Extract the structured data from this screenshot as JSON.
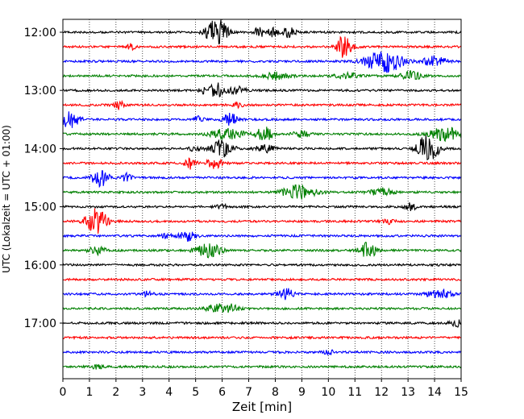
{
  "chart_data": {
    "type": "line",
    "subtype": "helicorder-seismogram",
    "xlabel": "Zeit  [min]",
    "ylabel": "UTC (Lokalzeit = UTC + 01:00)",
    "xlim": [
      0,
      15
    ],
    "x_ticks": [
      "0",
      "1",
      "2",
      "3",
      "4",
      "5",
      "6",
      "7",
      "8",
      "9",
      "10",
      "11",
      "12",
      "13",
      "14",
      "15"
    ],
    "y_tick_labels": [
      "12:00",
      "13:00",
      "14:00",
      "15:00",
      "16:00",
      "17:00"
    ],
    "y_tick_rows": [
      0,
      4,
      8,
      12,
      16,
      20
    ],
    "grid": "vertical-dotted",
    "line_minutes": 15,
    "start_time": "12:00",
    "color_cycle": [
      "#000000",
      "#ff0000",
      "#0000ff",
      "#008000"
    ],
    "traces": [
      {
        "time": "12:00",
        "events": [
          [
            5.7,
            12,
            0.35
          ],
          [
            6.0,
            8,
            0.3
          ],
          [
            7.4,
            6,
            0.2
          ],
          [
            7.9,
            5,
            0.2
          ],
          [
            8.5,
            6,
            0.25
          ]
        ]
      },
      {
        "time": "12:15",
        "events": [
          [
            10.6,
            14,
            0.3
          ],
          [
            2.6,
            4,
            0.15
          ]
        ]
      },
      {
        "time": "12:30",
        "events": [
          [
            11.9,
            9,
            0.6
          ],
          [
            12.4,
            8,
            0.5
          ],
          [
            14.0,
            7,
            0.4
          ]
        ]
      },
      {
        "time": "12:45",
        "events": [
          [
            8.0,
            4,
            0.5
          ],
          [
            10.7,
            4,
            0.4
          ],
          [
            13.1,
            5,
            0.4
          ]
        ]
      },
      {
        "time": "13:00",
        "events": [
          [
            5.8,
            9,
            0.3
          ],
          [
            6.6,
            7,
            0.25
          ],
          [
            5.3,
            3,
            0.2
          ]
        ]
      },
      {
        "time": "13:15",
        "events": [
          [
            2.1,
            5,
            0.2
          ],
          [
            6.6,
            3,
            0.2
          ]
        ]
      },
      {
        "time": "13:30",
        "events": [
          [
            0.3,
            13,
            0.3
          ],
          [
            6.3,
            9,
            0.25
          ],
          [
            5.1,
            4,
            0.2
          ]
        ]
      },
      {
        "time": "13:45",
        "events": [
          [
            6.2,
            7,
            0.6
          ],
          [
            7.6,
            9,
            0.3
          ],
          [
            9.0,
            4,
            0.3
          ],
          [
            14.4,
            8,
            0.6
          ]
        ]
      },
      {
        "time": "14:00",
        "events": [
          [
            6.0,
            10,
            0.4
          ],
          [
            7.6,
            6,
            0.3
          ],
          [
            13.6,
            11,
            0.3
          ],
          [
            13.9,
            11,
            0.3
          ],
          [
            5.0,
            4,
            0.2
          ]
        ]
      },
      {
        "time": "14:15",
        "events": [
          [
            4.8,
            7,
            0.2
          ],
          [
            5.7,
            6,
            0.3
          ]
        ]
      },
      {
        "time": "14:30",
        "events": [
          [
            1.4,
            11,
            0.3
          ],
          [
            2.4,
            5,
            0.2
          ]
        ]
      },
      {
        "time": "14:45",
        "events": [
          [
            8.9,
            9,
            0.6
          ],
          [
            12.0,
            5,
            0.4
          ]
        ]
      },
      {
        "time": "15:00",
        "events": [
          [
            13.1,
            5,
            0.2
          ],
          [
            6.0,
            3,
            0.2
          ]
        ]
      },
      {
        "time": "15:15",
        "events": [
          [
            1.1,
            9,
            0.3
          ],
          [
            1.4,
            11,
            0.3
          ],
          [
            12.3,
            3,
            0.2
          ]
        ]
      },
      {
        "time": "15:30",
        "events": [
          [
            4.7,
            6,
            0.3
          ],
          [
            3.9,
            3,
            0.2
          ]
        ]
      },
      {
        "time": "15:45",
        "events": [
          [
            1.3,
            5,
            0.3
          ],
          [
            5.5,
            8,
            0.5
          ],
          [
            11.5,
            10,
            0.3
          ]
        ]
      },
      {
        "time": "16:00",
        "events": []
      },
      {
        "time": "16:15",
        "events": []
      },
      {
        "time": "16:30",
        "events": [
          [
            8.4,
            7,
            0.3
          ],
          [
            14.2,
            5,
            0.5
          ],
          [
            3.2,
            3,
            0.2
          ]
        ]
      },
      {
        "time": "16:45",
        "events": [
          [
            5.8,
            5,
            0.4
          ],
          [
            6.3,
            5,
            0.3
          ]
        ]
      },
      {
        "time": "17:00",
        "events": [
          [
            14.9,
            4,
            0.3
          ]
        ]
      },
      {
        "time": "17:15",
        "events": []
      },
      {
        "time": "17:30",
        "events": [
          [
            10.0,
            3,
            0.2
          ]
        ]
      },
      {
        "time": "17:45",
        "events": [
          [
            1.3,
            3,
            0.2
          ]
        ]
      }
    ]
  }
}
